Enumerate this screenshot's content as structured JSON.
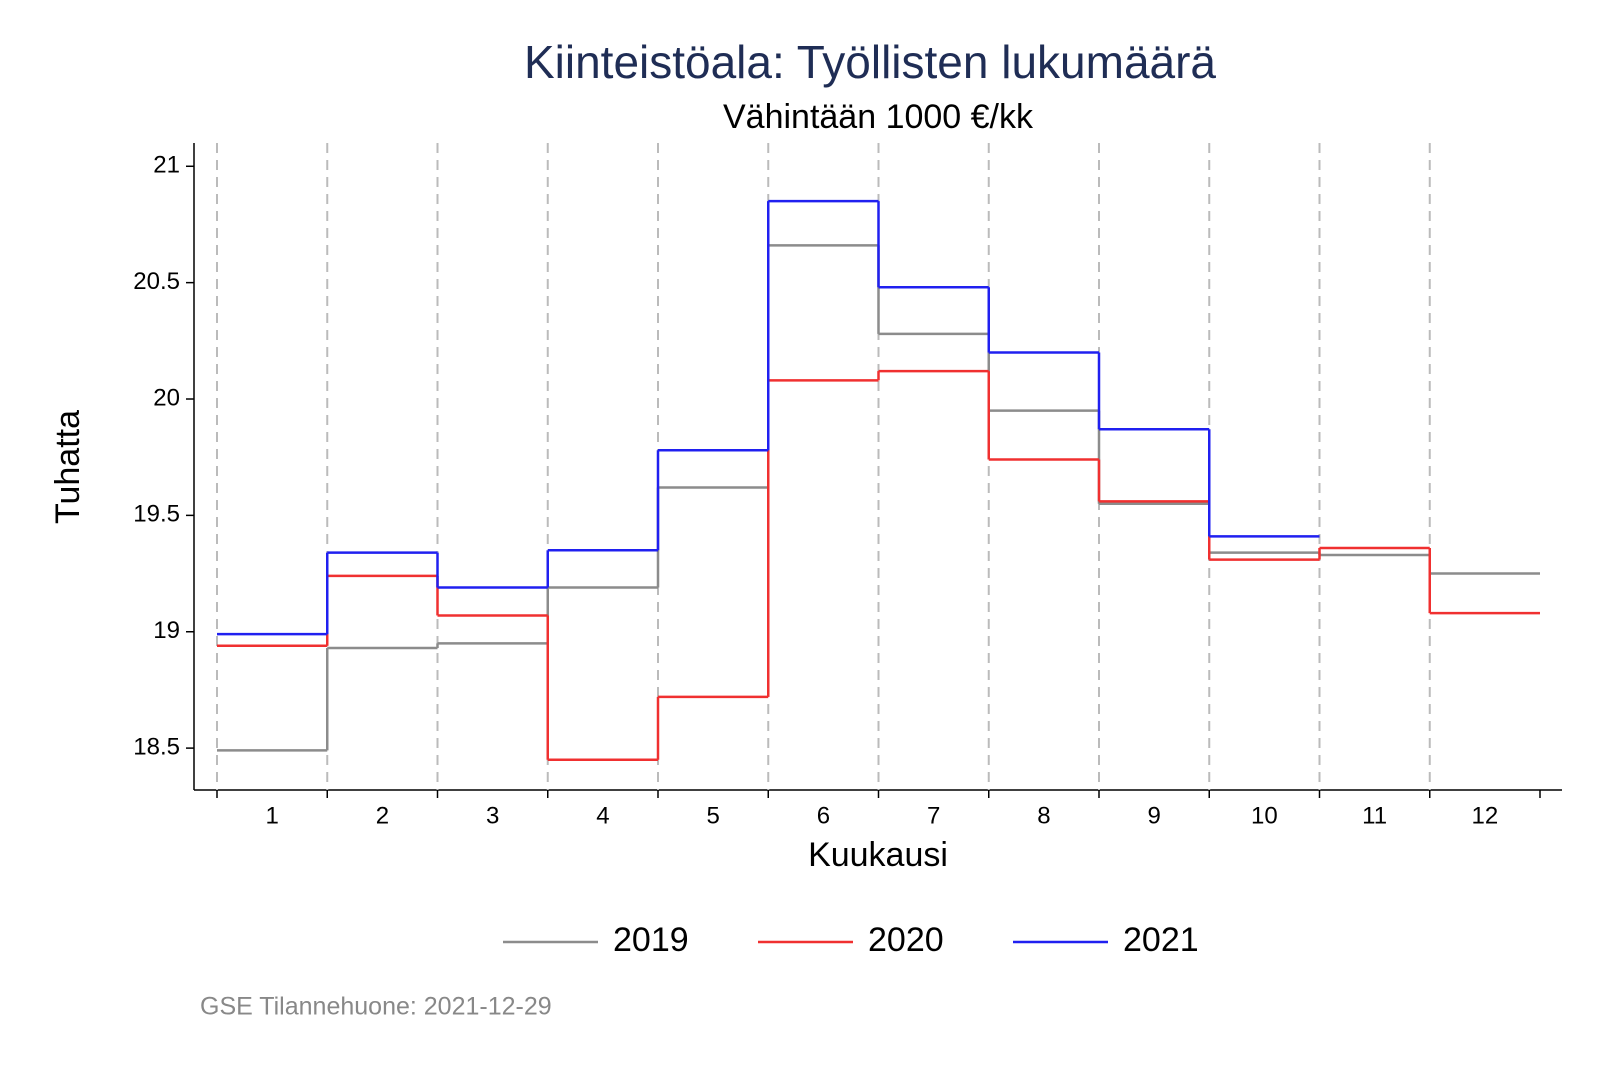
{
  "chart_data": {
    "type": "step",
    "title": "Kiinteistöala: Työllisten lukumäärä",
    "subtitle": "Vähintään 1000 €/kk",
    "x_label": "Kuukausi",
    "y_label": "Tuhatta",
    "categories": [
      "1",
      "2",
      "3",
      "4",
      "5",
      "6",
      "7",
      "8",
      "9",
      "10",
      "11",
      "12"
    ],
    "series": [
      {
        "name": "2019",
        "color": "#8c8c8c",
        "values": [
          18.49,
          18.93,
          18.95,
          19.19,
          19.62,
          20.66,
          20.28,
          19.95,
          19.55,
          19.34,
          19.33,
          19.25
        ]
      },
      {
        "name": "2020",
        "color": "#f03030",
        "values": [
          18.94,
          19.24,
          19.07,
          18.45,
          18.72,
          20.08,
          20.12,
          19.74,
          19.56,
          19.31,
          19.36,
          19.08
        ]
      },
      {
        "name": "2021",
        "color": "#2020f0",
        "values": [
          18.99,
          19.34,
          19.19,
          19.35,
          19.78,
          20.85,
          20.48,
          20.2,
          19.87,
          19.41,
          null,
          null
        ]
      }
    ],
    "ylim": [
      18.32,
      21.1
    ],
    "yticks": [
      18.5,
      19,
      19.5,
      20,
      20.5,
      21
    ],
    "legend": "bottom",
    "footnote": "GSE Tilannehuone: 2021-12-29"
  }
}
